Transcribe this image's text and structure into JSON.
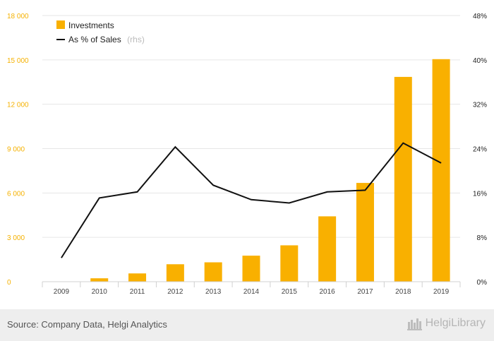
{
  "chart_data": {
    "type": "bar",
    "categories": [
      "2009",
      "2010",
      "2011",
      "2012",
      "2013",
      "2014",
      "2015",
      "2016",
      "2017",
      "2018",
      "2019"
    ],
    "series": [
      {
        "name": "Investments",
        "type": "bar",
        "axis": "left",
        "color": "#f9b000",
        "values": [
          0,
          230,
          560,
          1180,
          1310,
          1760,
          2460,
          4420,
          6680,
          13850,
          15050
        ]
      },
      {
        "name": "As % of Sales",
        "type": "line",
        "axis": "right",
        "color": "#111111",
        "values": [
          4.3,
          15.1,
          16.2,
          24.3,
          17.4,
          14.8,
          14.2,
          16.2,
          16.5,
          25.0,
          21.4
        ]
      }
    ],
    "legend": {
      "line_suffix": "(rhs)",
      "placement": "top-left"
    },
    "yleft": {
      "ticks": [
        "0",
        "3 000",
        "6 000",
        "9 000",
        "12 000",
        "15 000",
        "18 000"
      ],
      "ylim": [
        0,
        18000
      ]
    },
    "yright": {
      "ticks": [
        "0%",
        "8%",
        "16%",
        "24%",
        "32%",
        "40%",
        "48%"
      ],
      "ylim": [
        0,
        48
      ]
    },
    "grid": true
  },
  "footer": {
    "source": "Source: Company Data, Helgi Analytics",
    "brand": "HelgiLibrary"
  }
}
